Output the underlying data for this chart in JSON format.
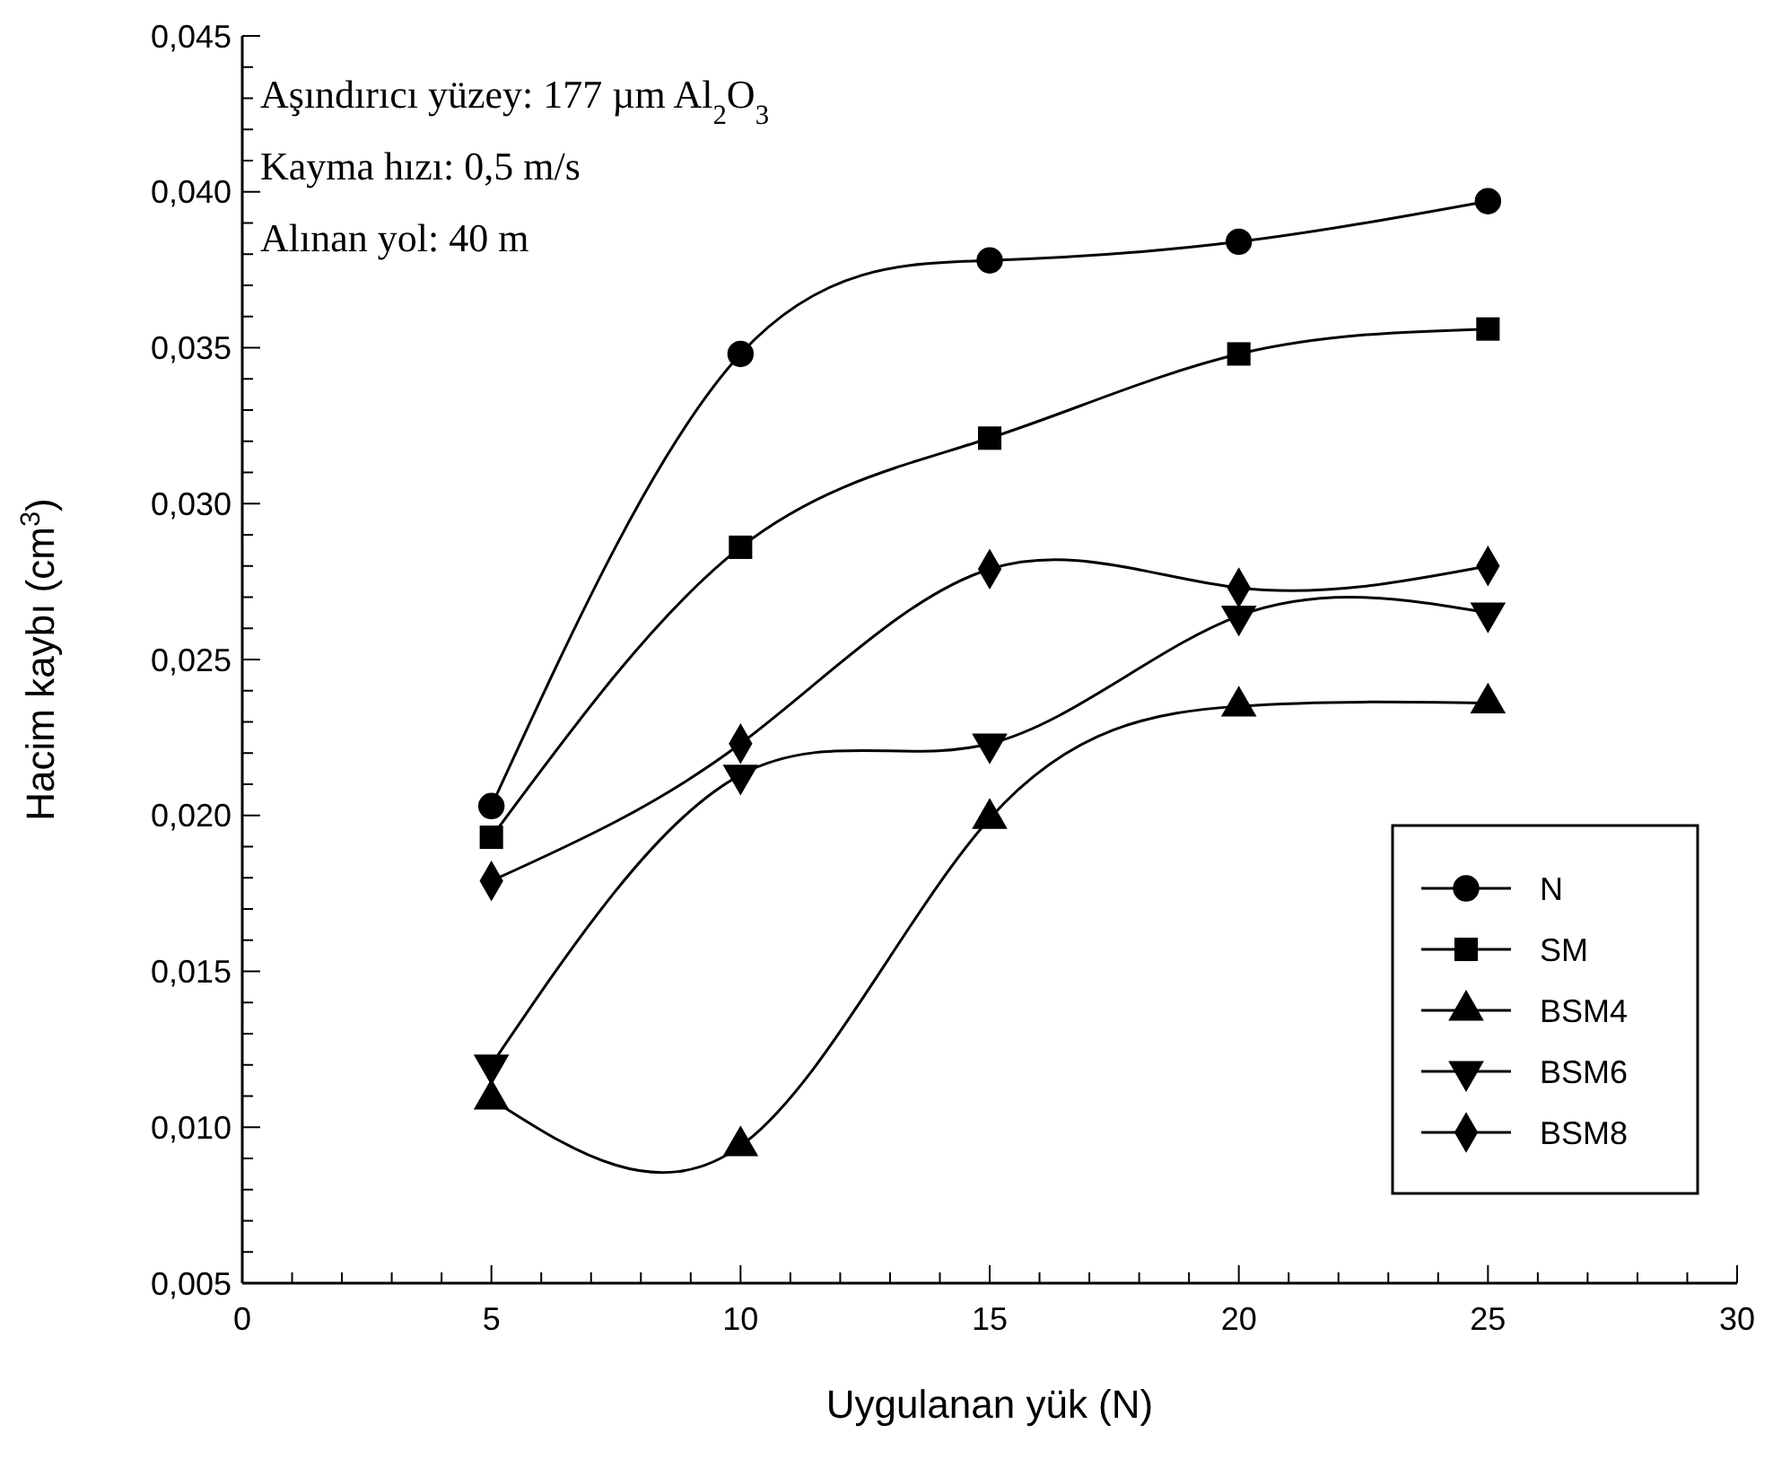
{
  "chart_data": {
    "type": "line",
    "xlabel": "Uygulanan yük (N)",
    "ylabel": "Hacim kaybı (cm$^{3}$)",
    "annotations": [
      "Aşındırıcı yüzey:  177 µm Al$_{2}$O$_{3}$",
      "Kayma hızı: 0,5 m/s",
      "Alınan yol: 40 m"
    ],
    "x": [
      5,
      10,
      15,
      20,
      25
    ],
    "series": [
      {
        "name": "N",
        "color": "#000000",
        "marker": "circle",
        "values": [
          0.0203,
          0.0348,
          0.0378,
          0.0384,
          0.0397
        ]
      },
      {
        "name": "SM",
        "color": "#000000",
        "marker": "square",
        "values": [
          0.0193,
          0.0286,
          0.0321,
          0.0348,
          0.0356
        ]
      },
      {
        "name": "BSM4",
        "color": "#000000",
        "marker": "triangle",
        "values": [
          0.0109,
          0.0094,
          0.0199,
          0.0235,
          0.0236
        ]
      },
      {
        "name": "BSM6",
        "color": "#000000",
        "marker": "triangle-down",
        "values": [
          0.012,
          0.0213,
          0.0223,
          0.0264,
          0.0265
        ]
      },
      {
        "name": "BSM8",
        "color": "#000000",
        "marker": "diamond",
        "values": [
          0.0179,
          0.0223,
          0.0279,
          0.0273,
          0.028
        ]
      }
    ],
    "xlim": [
      0,
      30
    ],
    "xticks": [
      0,
      {
        "value": 1,
        "label": null
      },
      {
        "value": 2,
        "label": null
      },
      {
        "value": 3,
        "label": null
      },
      {
        "value": 4,
        "label": null
      },
      5,
      {
        "value": 6,
        "label": null
      },
      {
        "value": 7,
        "label": null
      },
      {
        "value": 8,
        "label": null
      },
      {
        "value": 9,
        "label": null
      },
      10,
      {
        "value": 11,
        "label": null
      },
      {
        "value": 12,
        "label": null
      },
      {
        "value": 13,
        "label": null
      },
      {
        "value": 14,
        "label": null
      },
      15,
      {
        "value": 16,
        "label": null
      },
      {
        "value": 17,
        "label": null
      },
      {
        "value": 18,
        "label": null
      },
      {
        "value": 19,
        "label": null
      },
      20,
      {
        "value": 21,
        "label": null
      },
      {
        "value": 22,
        "label": null
      },
      {
        "value": 23,
        "label": null
      },
      {
        "value": 24,
        "label": null
      },
      25,
      {
        "value": 26,
        "label": null
      },
      {
        "value": 27,
        "label": null
      },
      {
        "value": 28,
        "label": null
      },
      {
        "value": 29,
        "label": null
      },
      30
    ],
    "ylim": [
      0.005,
      0.045
    ],
    "yticks": [
      {
        "value": 0.005,
        "label": "0,005"
      },
      {
        "value": 0.006,
        "label": null
      },
      {
        "value": 0.007,
        "label": null
      },
      {
        "value": 0.008,
        "label": null
      },
      {
        "value": 0.009,
        "label": null
      },
      {
        "value": 0.01,
        "label": "0,010"
      },
      {
        "value": 0.011,
        "label": null
      },
      {
        "value": 0.012,
        "label": null
      },
      {
        "value": 0.013,
        "label": null
      },
      {
        "value": 0.014,
        "label": null
      },
      {
        "value": 0.015,
        "label": "0,015"
      },
      {
        "value": 0.016,
        "label": null
      },
      {
        "value": 0.017,
        "label": null
      },
      {
        "value": 0.018,
        "label": null
      },
      {
        "value": 0.019,
        "label": null
      },
      {
        "value": 0.02,
        "label": "0,020"
      },
      {
        "value": 0.021,
        "label": null
      },
      {
        "value": 0.022,
        "label": null
      },
      {
        "value": 0.023,
        "label": null
      },
      {
        "value": 0.024,
        "label": null
      },
      {
        "value": 0.025,
        "label": "0,025"
      },
      {
        "value": 0.026,
        "label": null
      },
      {
        "value": 0.027,
        "label": null
      },
      {
        "value": 0.028,
        "label": null
      },
      {
        "value": 0.029,
        "label": null
      },
      {
        "value": 0.03,
        "label": "0,030"
      },
      {
        "value": 0.031,
        "label": null
      },
      {
        "value": 0.032,
        "label": null
      },
      {
        "value": 0.033,
        "label": null
      },
      {
        "value": 0.034,
        "label": null
      },
      {
        "value": 0.035,
        "label": "0,035"
      },
      {
        "value": 0.036,
        "label": null
      },
      {
        "value": 0.037,
        "label": null
      },
      {
        "value": 0.038,
        "label": null
      },
      {
        "value": 0.039,
        "label": null
      },
      {
        "value": 0.04,
        "label": "0,040"
      },
      {
        "value": 0.041,
        "label": null
      },
      {
        "value": 0.042,
        "label": null
      },
      {
        "value": 0.043,
        "label": null
      },
      {
        "value": 0.044,
        "label": null
      },
      {
        "value": 0.045,
        "label": "0,045"
      }
    ],
    "grid": false,
    "legend": "bottom right",
    "line_style": "solid"
  }
}
